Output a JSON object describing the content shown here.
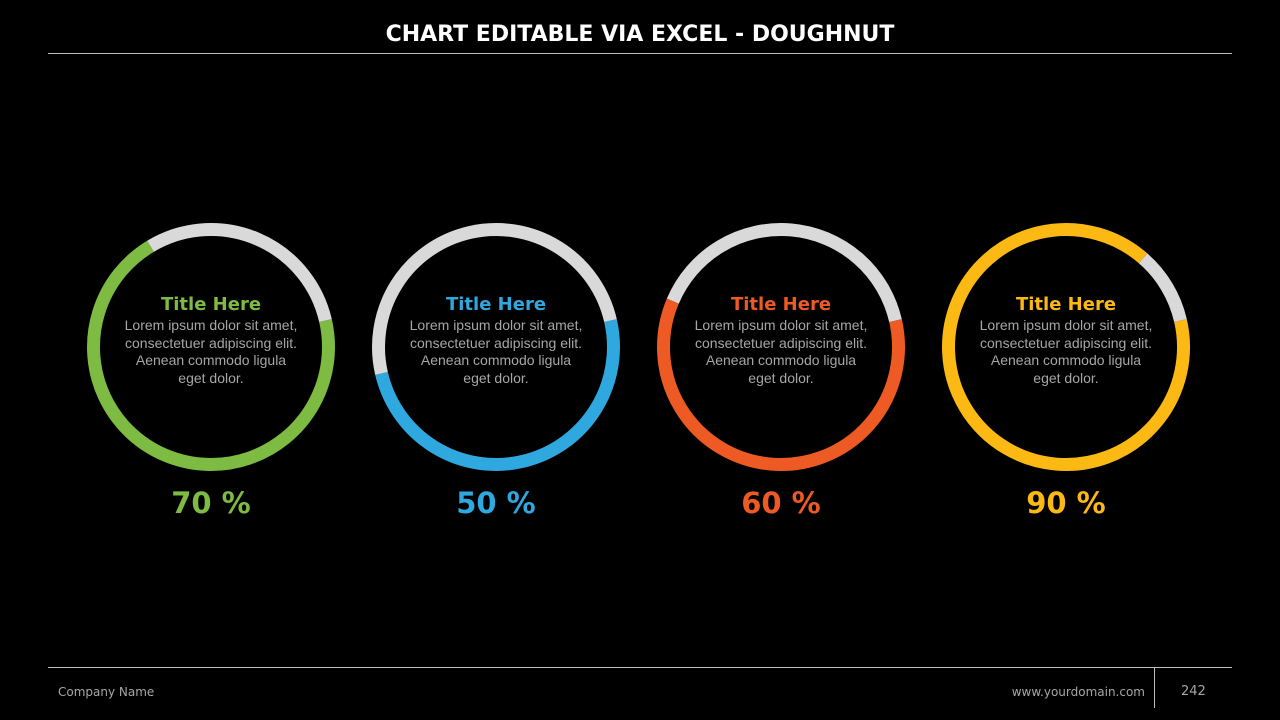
{
  "header": {
    "title": "CHART EDITABLE VIA EXCEL - DOUGHNUT"
  },
  "chart_data": [
    {
      "type": "doughnut",
      "title": "Title Here",
      "body": "Lorem ipsum dolor sit amet, consectetuer adipiscing elit. Aenean commodo ligula eget dolor.",
      "value": 70,
      "label": "70 %",
      "color": "#7dbb42",
      "remainder_color": "#d9d9d9"
    },
    {
      "type": "doughnut",
      "title": "Title Here",
      "body": "Lorem ipsum dolor sit amet, consectetuer adipiscing elit. Aenean commodo ligula eget dolor.",
      "value": 50,
      "label": "50 %",
      "color": "#2fa8e0",
      "remainder_color": "#d9d9d9"
    },
    {
      "type": "doughnut",
      "title": "Title Here",
      "body": "Lorem ipsum dolor sit amet, consectetuer adipiscing elit. Aenean commodo ligula eget dolor.",
      "value": 60,
      "label": "60 %",
      "color": "#ee5a24",
      "remainder_color": "#d9d9d9"
    },
    {
      "type": "doughnut",
      "title": "Title Here",
      "body": "Lorem ipsum dolor sit amet, consectetuer adipiscing elit. Aenean commodo ligula eget dolor.",
      "value": 90,
      "label": "90 %",
      "color": "#fdb913",
      "remainder_color": "#d9d9d9"
    }
  ],
  "footer": {
    "company": "Company Name",
    "domain": "www.yourdomain.com",
    "page": "242"
  }
}
